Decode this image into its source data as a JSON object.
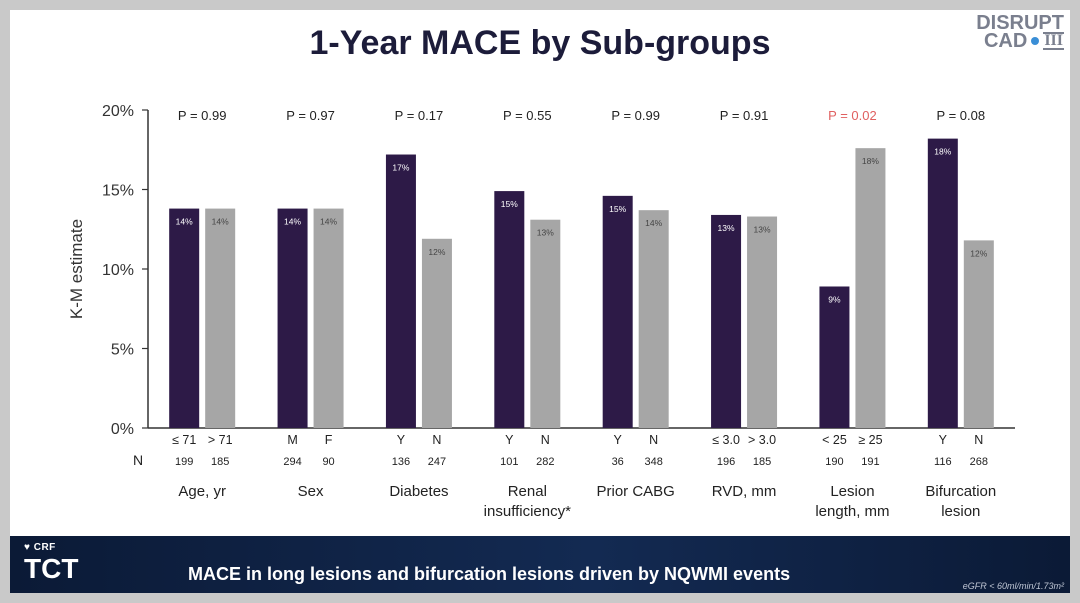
{
  "title": "1-Year MACE by Sub-groups",
  "logo": {
    "line1": "DISRUPT",
    "line2": "CAD",
    "line3": "III"
  },
  "footer": {
    "crf": "CRF",
    "tct": "TCT",
    "message": "MACE in long lesions and bifurcation lesions driven by NQWMI events",
    "note": "eGFR < 60ml/min/1.73m²"
  },
  "colors": {
    "dark": "#2d1a47",
    "light": "#a6a6a6",
    "red_p": "#e06060",
    "axis": "#333333"
  },
  "chart_data": {
    "type": "bar",
    "ylabel": "K-M estimate",
    "ylim": [
      0,
      20
    ],
    "yticks": [
      "0%",
      "5%",
      "10%",
      "15%",
      "20%"
    ],
    "n_label": "N",
    "groups": [
      {
        "name": "Age, yr",
        "p": "P = 0.99",
        "significant": false,
        "bars": [
          {
            "label": "≤ 71",
            "value": 13.8,
            "text": "14%",
            "n": "199",
            "series": "dark"
          },
          {
            "label": "> 71",
            "value": 13.8,
            "text": "14%",
            "n": "185",
            "series": "light"
          }
        ]
      },
      {
        "name": "Sex",
        "p": "P = 0.97",
        "significant": false,
        "bars": [
          {
            "label": "M",
            "value": 13.8,
            "text": "14%",
            "n": "294",
            "series": "dark"
          },
          {
            "label": "F",
            "value": 13.8,
            "text": "14%",
            "n": "90",
            "series": "light"
          }
        ]
      },
      {
        "name": "Diabetes",
        "p": "P = 0.17",
        "significant": false,
        "bars": [
          {
            "label": "Y",
            "value": 17.2,
            "text": "17%",
            "n": "136",
            "series": "dark"
          },
          {
            "label": "N",
            "value": 11.9,
            "text": "12%",
            "n": "247",
            "series": "light"
          }
        ]
      },
      {
        "name": "Renal insufficiency*",
        "p": "P = 0.55",
        "significant": false,
        "bars": [
          {
            "label": "Y",
            "value": 14.9,
            "text": "15%",
            "n": "101",
            "series": "dark"
          },
          {
            "label": "N",
            "value": 13.1,
            "text": "13%",
            "n": "282",
            "series": "light"
          }
        ]
      },
      {
        "name": "Prior CABG",
        "p": "P = 0.99",
        "significant": false,
        "bars": [
          {
            "label": "Y",
            "value": 14.6,
            "text": "15%",
            "n": "36",
            "series": "dark"
          },
          {
            "label": "N",
            "value": 13.7,
            "text": "14%",
            "n": "348",
            "series": "light"
          }
        ]
      },
      {
        "name": "RVD, mm",
        "p": "P = 0.91",
        "significant": false,
        "bars": [
          {
            "label": "≤ 3.0",
            "value": 13.4,
            "text": "13%",
            "n": "196",
            "series": "dark"
          },
          {
            "label": "> 3.0",
            "value": 13.3,
            "text": "13%",
            "n": "185",
            "series": "light"
          }
        ]
      },
      {
        "name": "Lesion length, mm",
        "p": "P = 0.02",
        "significant": true,
        "bars": [
          {
            "label": "< 25",
            "value": 8.9,
            "text": "9%",
            "n": "190",
            "series": "dark"
          },
          {
            "label": "≥ 25",
            "value": 17.6,
            "text": "18%",
            "n": "191",
            "series": "light"
          }
        ]
      },
      {
        "name": "Bifurcation lesion",
        "p": "P = 0.08",
        "significant": false,
        "bars": [
          {
            "label": "Y",
            "value": 18.2,
            "text": "18%",
            "n": "116",
            "series": "dark"
          },
          {
            "label": "N",
            "value": 11.8,
            "text": "12%",
            "n": "268",
            "series": "light"
          }
        ]
      }
    ]
  }
}
